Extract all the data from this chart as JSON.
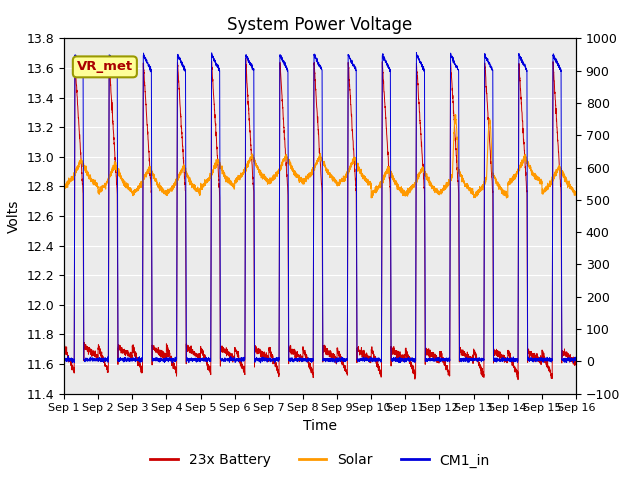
{
  "title": "System Power Voltage",
  "xlabel": "Time",
  "ylabel": "Volts",
  "left_ylim": [
    11.4,
    13.8
  ],
  "right_ylim": [
    -100,
    1000
  ],
  "left_yticks": [
    11.4,
    11.6,
    11.8,
    12.0,
    12.2,
    12.4,
    12.6,
    12.8,
    13.0,
    13.2,
    13.4,
    13.6,
    13.8
  ],
  "right_yticks": [
    -100,
    0,
    100,
    200,
    300,
    400,
    500,
    600,
    700,
    800,
    900,
    1000
  ],
  "x_tick_labels": [
    "Sep 1",
    "Sep 2",
    "Sep 3",
    "Sep 4",
    "Sep 5",
    "Sep 6",
    "Sep 7",
    "Sep 8",
    "Sep 9",
    "Sep 10",
    "Sep 11",
    "Sep 12",
    "Sep 13",
    "Sep 14",
    "Sep 15",
    "Sep 16"
  ],
  "n_days": 15,
  "pts_per_day": 288,
  "battery_color": "#cc0000",
  "solar_color": "#ff9900",
  "cm1_color": "#0000dd",
  "legend_labels": [
    "23x Battery",
    "Solar",
    "CM1_in"
  ],
  "vr_met_text": "VR_met",
  "vr_met_bg": "#ffff99",
  "vr_met_border": "#999900",
  "plot_bg": "#ebebeb",
  "grid_color": "#ffffff",
  "title_fontsize": 12,
  "axis_fontsize": 10,
  "tick_fontsize": 9,
  "legend_fontsize": 10,
  "figwidth": 6.4,
  "figheight": 4.8,
  "dpi": 100
}
